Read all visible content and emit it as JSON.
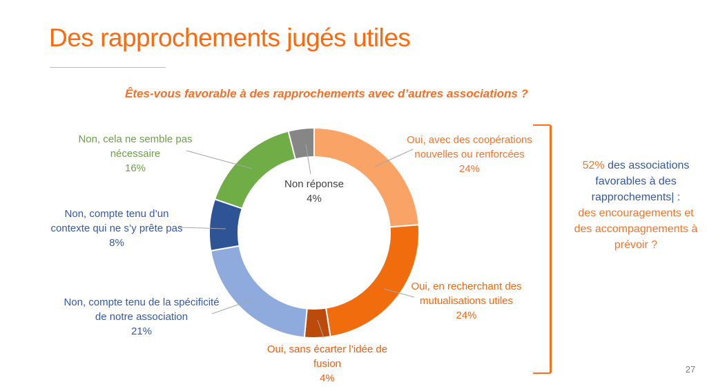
{
  "slide": {
    "title": "Des rapprochements jugés utiles",
    "page_number": "27"
  },
  "chart_data": {
    "type": "pie",
    "subtype": "donut",
    "title": "Êtes-vous favorable à des rapprochements avec d’autres associations ?",
    "start_angle_deg": 0,
    "direction": "clockwise",
    "legend_position": "none",
    "segments": [
      {
        "label": "Oui, avec des coopérations nouvelles ou renforcées",
        "value": 24,
        "pct": "24%",
        "color": "#F9A366"
      },
      {
        "label": "Oui, en recherchant des mutualisations utiles",
        "value": 24,
        "pct": "24%",
        "color": "#F06C0D"
      },
      {
        "label": "Oui, sans écarter l’idée de fusion",
        "value": 4,
        "pct": "4%",
        "color": "#BC4B0B"
      },
      {
        "label": "Non, compte tenu de la spécificité de notre association",
        "value": 21,
        "pct": "21%",
        "color": "#8FAADC"
      },
      {
        "label": "Non, compte tenu d’un contexte qui ne s’y prête pas",
        "value": 8,
        "pct": "8%",
        "color": "#2F5496"
      },
      {
        "label": "Non, cela ne semble pas nécessaire",
        "value": 16,
        "pct": "16%",
        "color": "#70AD47"
      },
      {
        "label": "Non réponse",
        "value": 4,
        "pct": "4%",
        "color": "#868686"
      }
    ]
  },
  "side_note": {
    "highlight": "52%",
    "blue_text": " des associations favorables à des rapprochements| :",
    "orange_text": "des encouragements et des accompagnements à prévoir ?"
  },
  "colors": {
    "title_orange": "#FB6A0E",
    "accent_orange": "#F0752B",
    "accent_blue": "#35589E",
    "bracket_orange": "#F2731C",
    "leader_gray": "#A6A6A6"
  }
}
